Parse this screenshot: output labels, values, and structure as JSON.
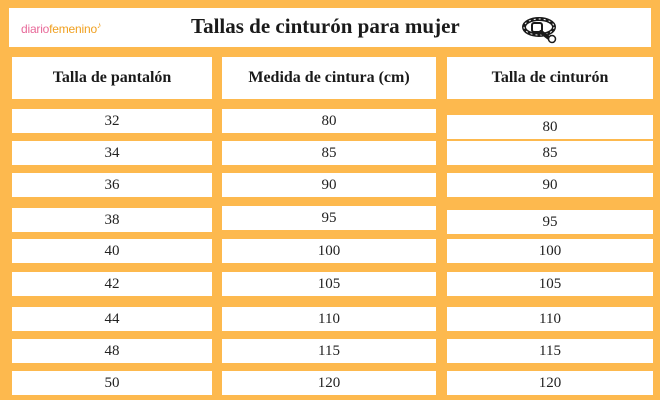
{
  "header": {
    "logo_part1": "diario",
    "logo_part2": "femenino",
    "logo_mark": "♪",
    "title": "Tallas de cinturón para mujer",
    "icon": "belt-icon"
  },
  "table": {
    "columns": [
      "Talla de pantalón",
      "Medida de cintura (cm)",
      "Talla de cinturón"
    ],
    "rows": [
      [
        "32",
        "80",
        "80"
      ],
      [
        "34",
        "85",
        "85"
      ],
      [
        "36",
        "90",
        "90"
      ],
      [
        "38",
        "95",
        "95"
      ],
      [
        "40",
        "100",
        "100"
      ],
      [
        "42",
        "105",
        "105"
      ],
      [
        "44",
        "110",
        "110"
      ],
      [
        "48",
        "115",
        "115"
      ],
      [
        "50",
        "120",
        "120"
      ]
    ]
  },
  "colors": {
    "background": "#fdb94e",
    "cell": "#ffffff",
    "logo_pink": "#e86a9a",
    "logo_orange": "#f0a020"
  }
}
